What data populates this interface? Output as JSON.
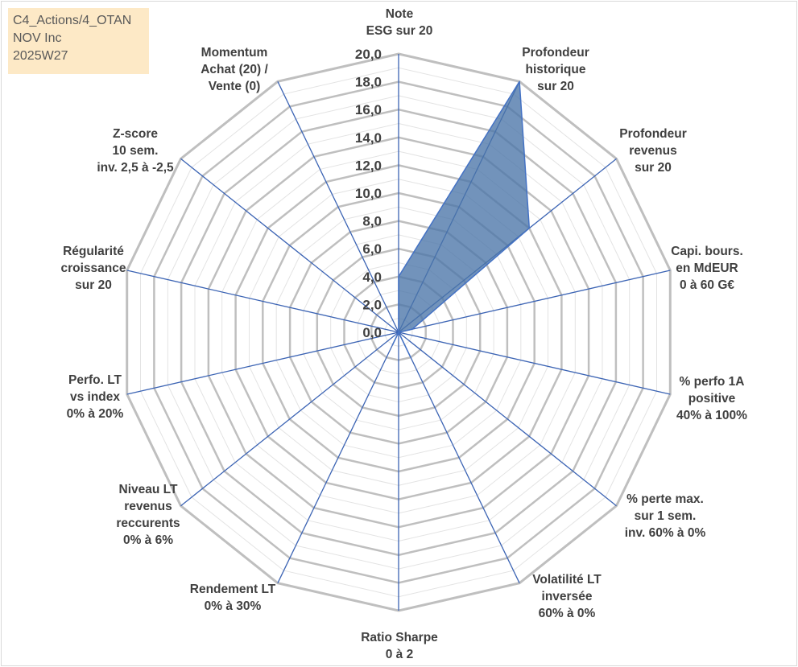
{
  "info_box": {
    "line1": "C4_Actions/4_OTAN",
    "line2": "NOV Inc",
    "line3": "2025W27"
  },
  "chart_data": {
    "type": "radar",
    "range": [
      0,
      20
    ],
    "tick_step": 2,
    "minor_step": 1,
    "tick_labels": [
      "0,0",
      "2,0",
      "4,0",
      "6,0",
      "8,0",
      "10,0",
      "12,0",
      "14,0",
      "16,0",
      "18,0",
      "20,0"
    ],
    "axes": [
      {
        "label": [
          "Note",
          "ESG sur 20"
        ],
        "value": 4
      },
      {
        "label": [
          "Profondeur",
          "historique",
          "sur 20"
        ],
        "value": 20
      },
      {
        "label": [
          "Profondeur",
          "revenus",
          "sur 20"
        ],
        "value": 12
      },
      {
        "label": [
          "Capi. bours.",
          "en MdEUR",
          "0 à 60 G€"
        ],
        "value": 1
      },
      {
        "label": [
          "% perfo 1A",
          "positive",
          "40% à 100%"
        ],
        "value": 0
      },
      {
        "label": [
          "% perte max.",
          "sur 1 sem.",
          "inv. 60% à 0%"
        ],
        "value": 0
      },
      {
        "label": [
          "Volatilité LT",
          "inversée",
          "60% à 0%"
        ],
        "value": 2
      },
      {
        "label": [
          "Ratio Sharpe",
          "0 à 2"
        ],
        "value": 0
      },
      {
        "label": [
          "Rendement LT",
          "0% à 30%"
        ],
        "value": 1
      },
      {
        "label": [
          "Niveau LT",
          "revenus",
          "reccurents",
          "0% à 6%"
        ],
        "value": 0
      },
      {
        "label": [
          "Perfo. LT",
          "vs index",
          "0% à 20%"
        ],
        "value": 0
      },
      {
        "label": [
          "Régularité",
          "croissance",
          "sur 20"
        ],
        "value": 0
      },
      {
        "label": [
          "Z-score",
          "10 sem.",
          "inv. 2,5 à -2,5"
        ],
        "value": 0
      },
      {
        "label": [
          "Momentum",
          "Achat (20) /",
          "Vente (0)"
        ],
        "value": 0
      }
    ],
    "colors": {
      "fill": "#4a74a8",
      "stroke": "#4472c4",
      "spoke": "#3c64b4",
      "major_grid": "#bfbfbf",
      "minor_grid": "#e3e3e3",
      "text": "#404040"
    },
    "grid": true
  }
}
